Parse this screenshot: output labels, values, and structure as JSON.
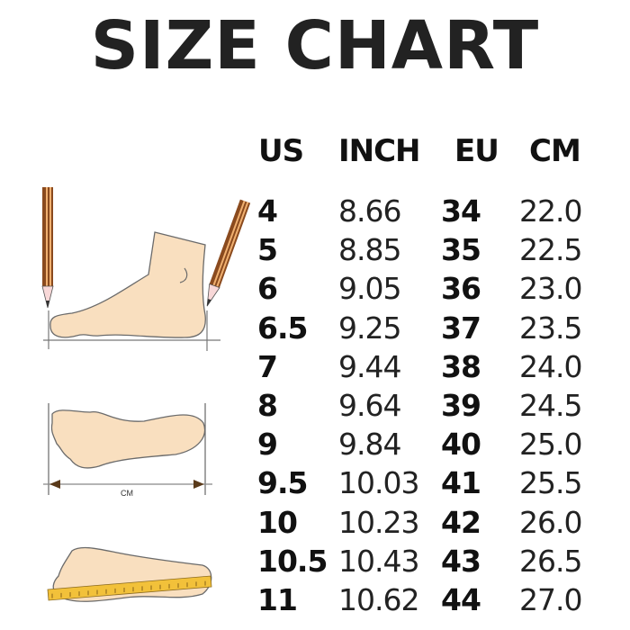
{
  "title": "SIZE CHART",
  "table": {
    "headers": [
      "US",
      "INCH",
      "EU",
      "CM"
    ],
    "rows": [
      [
        "4",
        "8.66",
        "34",
        "22.0"
      ],
      [
        "5",
        "8.85",
        "35",
        "22.5"
      ],
      [
        "6",
        "9.05",
        "36",
        "23.0"
      ],
      [
        "6.5",
        "9.25",
        "37",
        "23.5"
      ],
      [
        "7",
        "9.44",
        "38",
        "24.0"
      ],
      [
        "8",
        "9.64",
        "39",
        "24.5"
      ],
      [
        "9",
        "9.84",
        "40",
        "25.0"
      ],
      [
        "9.5",
        "10.03",
        "41",
        "25.5"
      ],
      [
        "10",
        "10.23",
        "42",
        "26.0"
      ],
      [
        "10.5",
        "10.43",
        "43",
        "26.5"
      ],
      [
        "11",
        "10.62",
        "44",
        "27.0"
      ]
    ]
  },
  "illustration": {
    "measure_label": "CM",
    "colors": {
      "skin": "#f9dfbf",
      "outline": "#6b6b6b",
      "pencil": "#8a4a1e",
      "tape": "#f2c13a"
    }
  }
}
